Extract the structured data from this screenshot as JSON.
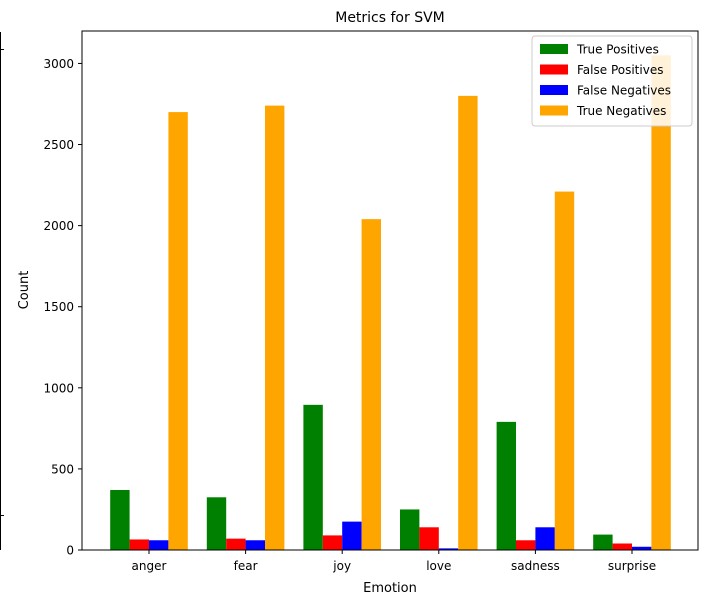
{
  "chart_data": {
    "type": "bar",
    "title": "Metrics for SVM",
    "xlabel": "Emotion",
    "ylabel": "Count",
    "ylim": [
      0,
      3200
    ],
    "yticks": [
      0,
      500,
      1000,
      1500,
      2000,
      2500,
      3000
    ],
    "categories": [
      "anger",
      "fear",
      "joy",
      "love",
      "sadness",
      "surprise"
    ],
    "series": [
      {
        "name": "True Positives",
        "color": "#008000",
        "values": [
          370,
          325,
          895,
          250,
          790,
          95
        ]
      },
      {
        "name": "False Positives",
        "color": "#ff0000",
        "values": [
          65,
          70,
          90,
          140,
          60,
          40
        ]
      },
      {
        "name": "False Negatives",
        "color": "#0000ff",
        "values": [
          60,
          60,
          175,
          10,
          140,
          20
        ]
      },
      {
        "name": "True Negatives",
        "color": "#ffa500",
        "values": [
          2700,
          2740,
          2040,
          2800,
          2210,
          3050
        ]
      }
    ],
    "legend_position": "top-right",
    "grid": false
  }
}
